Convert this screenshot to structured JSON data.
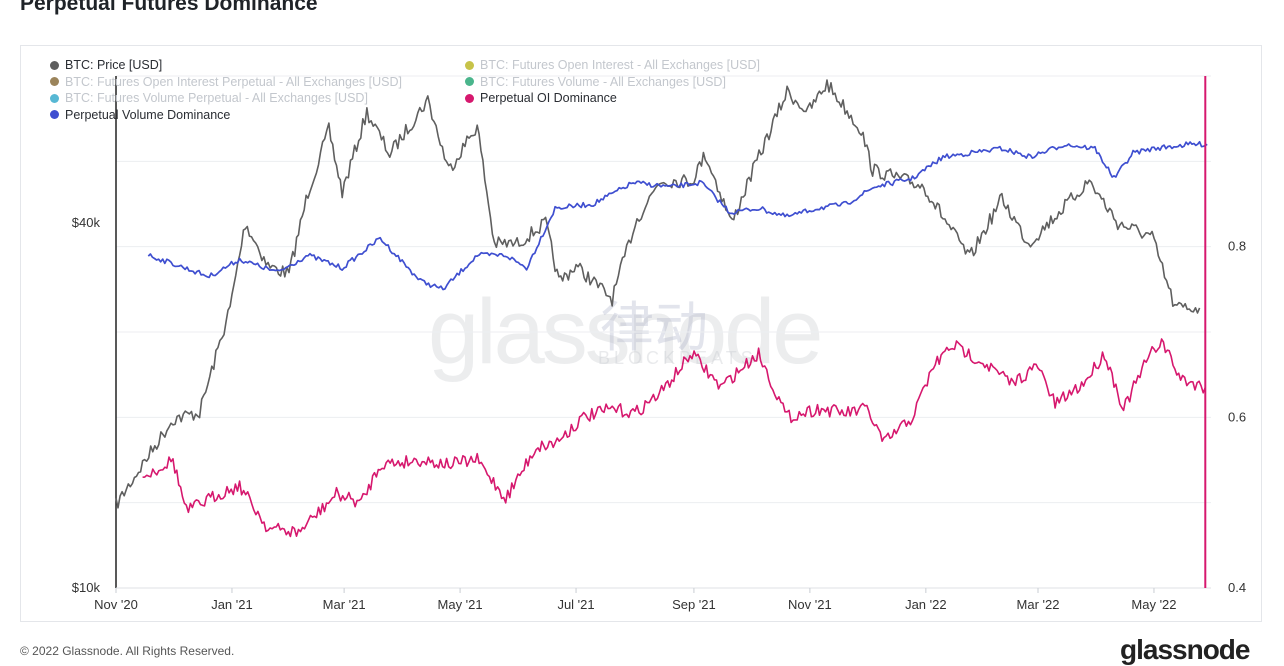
{
  "page": {
    "title": "Perpetual Futures Dominance"
  },
  "footer": {
    "copyright": "© 2022 Glassnode. All Rights Reserved.",
    "brand": "glassnode"
  },
  "watermark": {
    "text": "glassnode",
    "cn": "律动",
    "sub": "BLOCKBEATS"
  },
  "legend": [
    {
      "label": "BTC: Price [USD]",
      "color": "#5f5f5f",
      "active": true
    },
    {
      "label": "BTC: Futures Open Interest - All Exchanges [USD]",
      "color": "#bdb929",
      "active": false
    },
    {
      "label": "BTC: Futures Open Interest Perpetual - All Exchanges [USD]",
      "color": "#8a6e3e",
      "active": false
    },
    {
      "label": "BTC: Futures Volume - All Exchanges [USD]",
      "color": "#2aa878",
      "active": false
    },
    {
      "label": "BTC: Futures Volume Perpetual - All Exchanges [USD]",
      "color": "#3aaccc",
      "active": false
    },
    {
      "label": "Perpetual OI Dominance",
      "color": "#d6186e",
      "active": true
    },
    {
      "label": "Perpetual Volume Dominance",
      "color": "#3f4fd0",
      "active": true
    }
  ],
  "chart_data": {
    "type": "line",
    "x_tick_labels": [
      "Nov '20",
      "Jan '21",
      "Mar '21",
      "May '21",
      "Jul '21",
      "Sep '21",
      "Nov '21",
      "Jan '22",
      "Mar '22",
      "May '22"
    ],
    "x_range": [
      "2020-11-01",
      "2022-05-31"
    ],
    "y_left": {
      "scale": "log",
      "range": [
        10000,
        70000
      ],
      "tick_labels": [
        "$10k",
        "$40k"
      ],
      "ticks": [
        10000,
        40000
      ]
    },
    "y_right": {
      "range": [
        0.4,
        1.0
      ],
      "tick_labels": [
        "0.4",
        "0.6",
        "0.8"
      ],
      "ticks": [
        0.4,
        0.6,
        0.8
      ]
    },
    "grid": true,
    "series": [
      {
        "name": "BTC: Price [USD]",
        "axis": "left",
        "color": "#5f5f5f",
        "points": [
          [
            "2020-11-01",
            13700
          ],
          [
            "2020-11-15",
            16000
          ],
          [
            "2020-12-01",
            19000
          ],
          [
            "2020-12-15",
            19500
          ],
          [
            "2020-12-31",
            29000
          ],
          [
            "2021-01-08",
            40000
          ],
          [
            "2021-01-20",
            34000
          ],
          [
            "2021-01-31",
            33000
          ],
          [
            "2021-02-10",
            45000
          ],
          [
            "2021-02-21",
            57000
          ],
          [
            "2021-02-28",
            45000
          ],
          [
            "2021-03-13",
            61000
          ],
          [
            "2021-03-25",
            52000
          ],
          [
            "2021-04-14",
            64000
          ],
          [
            "2021-04-25",
            49000
          ],
          [
            "2021-05-10",
            58000
          ],
          [
            "2021-05-19",
            37000
          ],
          [
            "2021-05-31",
            37000
          ],
          [
            "2021-06-15",
            40000
          ],
          [
            "2021-06-22",
            32000
          ],
          [
            "2021-07-01",
            34000
          ],
          [
            "2021-07-20",
            30000
          ],
          [
            "2021-08-01",
            40000
          ],
          [
            "2021-08-14",
            47000
          ],
          [
            "2021-08-31",
            47000
          ],
          [
            "2021-09-07",
            52000
          ],
          [
            "2021-09-21",
            40000
          ],
          [
            "2021-10-01",
            48000
          ],
          [
            "2021-10-20",
            66000
          ],
          [
            "2021-10-31",
            61000
          ],
          [
            "2021-11-10",
            68000
          ],
          [
            "2021-11-28",
            57000
          ],
          [
            "2021-12-04",
            49000
          ],
          [
            "2021-12-31",
            46000
          ],
          [
            "2022-01-10",
            41000
          ],
          [
            "2022-01-24",
            35000
          ],
          [
            "2022-02-10",
            44000
          ],
          [
            "2022-02-24",
            37000
          ],
          [
            "2022-03-28",
            47000
          ],
          [
            "2022-04-12",
            40000
          ],
          [
            "2022-04-30",
            38000
          ],
          [
            "2022-05-12",
            29000
          ],
          [
            "2022-05-25",
            29000
          ]
        ]
      },
      {
        "name": "Perpetual Volume Dominance",
        "axis": "right",
        "color": "#3f4fd0",
        "points": [
          [
            "2020-11-18",
            0.79
          ],
          [
            "2020-12-01",
            0.78
          ],
          [
            "2020-12-20",
            0.765
          ],
          [
            "2021-01-05",
            0.785
          ],
          [
            "2021-01-25",
            0.77
          ],
          [
            "2021-02-10",
            0.79
          ],
          [
            "2021-02-28",
            0.775
          ],
          [
            "2021-03-20",
            0.81
          ],
          [
            "2021-04-10",
            0.76
          ],
          [
            "2021-04-22",
            0.75
          ],
          [
            "2021-05-10",
            0.79
          ],
          [
            "2021-05-25",
            0.79
          ],
          [
            "2021-06-05",
            0.775
          ],
          [
            "2021-06-20",
            0.845
          ],
          [
            "2021-07-10",
            0.85
          ],
          [
            "2021-07-31",
            0.875
          ],
          [
            "2021-08-20",
            0.87
          ],
          [
            "2021-09-05",
            0.875
          ],
          [
            "2021-09-20",
            0.84
          ],
          [
            "2021-10-05",
            0.845
          ],
          [
            "2021-10-20",
            0.835
          ],
          [
            "2021-11-05",
            0.845
          ],
          [
            "2021-11-20",
            0.85
          ],
          [
            "2021-12-05",
            0.87
          ],
          [
            "2021-12-25",
            0.88
          ],
          [
            "2022-01-10",
            0.905
          ],
          [
            "2022-01-25",
            0.91
          ],
          [
            "2022-02-10",
            0.915
          ],
          [
            "2022-02-25",
            0.905
          ],
          [
            "2022-03-15",
            0.92
          ],
          [
            "2022-03-31",
            0.915
          ],
          [
            "2022-04-10",
            0.88
          ],
          [
            "2022-04-20",
            0.91
          ],
          [
            "2022-05-01",
            0.915
          ],
          [
            "2022-05-20",
            0.92
          ],
          [
            "2022-05-29",
            0.92
          ]
        ]
      },
      {
        "name": "Perpetual OI Dominance",
        "axis": "right",
        "color": "#d6186e",
        "points": [
          [
            "2020-11-15",
            0.53
          ],
          [
            "2020-12-01",
            0.55
          ],
          [
            "2020-12-08",
            0.49
          ],
          [
            "2020-12-25",
            0.51
          ],
          [
            "2021-01-05",
            0.52
          ],
          [
            "2021-01-20",
            0.47
          ],
          [
            "2021-02-05",
            0.465
          ],
          [
            "2021-02-25",
            0.51
          ],
          [
            "2021-03-10",
            0.5
          ],
          [
            "2021-03-20",
            0.545
          ],
          [
            "2021-04-10",
            0.55
          ],
          [
            "2021-04-25",
            0.545
          ],
          [
            "2021-05-10",
            0.55
          ],
          [
            "2021-05-25",
            0.505
          ],
          [
            "2021-06-10",
            0.565
          ],
          [
            "2021-06-20",
            0.57
          ],
          [
            "2021-07-05",
            0.6
          ],
          [
            "2021-07-20",
            0.61
          ],
          [
            "2021-08-01",
            0.605
          ],
          [
            "2021-08-15",
            0.63
          ],
          [
            "2021-08-31",
            0.675
          ],
          [
            "2021-09-15",
            0.635
          ],
          [
            "2021-10-05",
            0.675
          ],
          [
            "2021-10-20",
            0.6
          ],
          [
            "2021-11-05",
            0.61
          ],
          [
            "2021-11-20",
            0.605
          ],
          [
            "2021-12-01",
            0.61
          ],
          [
            "2021-12-10",
            0.57
          ],
          [
            "2021-12-25",
            0.6
          ],
          [
            "2022-01-05",
            0.66
          ],
          [
            "2022-01-15",
            0.685
          ],
          [
            "2022-01-31",
            0.665
          ],
          [
            "2022-02-15",
            0.64
          ],
          [
            "2022-03-01",
            0.66
          ],
          [
            "2022-03-10",
            0.615
          ],
          [
            "2022-03-25",
            0.64
          ],
          [
            "2022-04-05",
            0.675
          ],
          [
            "2022-04-15",
            0.61
          ],
          [
            "2022-04-28",
            0.67
          ],
          [
            "2022-05-05",
            0.69
          ],
          [
            "2022-05-15",
            0.645
          ],
          [
            "2022-05-28",
            0.635
          ]
        ]
      }
    ],
    "cursor_line_date": "2022-05-28"
  }
}
